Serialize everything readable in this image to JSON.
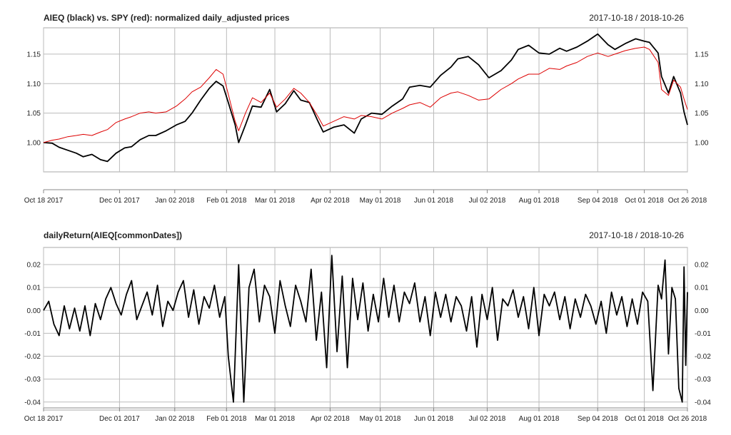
{
  "chart_data": [
    {
      "type": "line",
      "title": "AIEQ (black) vs. SPY (red): normalized daily_adjusted prices",
      "date_range": "2017-10-18 / 2018-10-26",
      "x_tick_labels": [
        "Oct 18 2017",
        "Dec 01 2017",
        "Jan 02 2018",
        "Feb 01 2018",
        "Mar 01 2018",
        "Apr 02 2018",
        "May 01 2018",
        "Jun 01 2018",
        "Jul 02 2018",
        "Aug 01 2018",
        "Sep 04 2018",
        "Oct 01 2018",
        "Oct 26 2018"
      ],
      "y_tick_labels": [
        "1.00",
        "1.05",
        "1.10",
        "1.15"
      ],
      "ylim": [
        0.96,
        1.185
      ],
      "grid": true,
      "series": [
        {
          "name": "AIEQ",
          "color": "#000000",
          "x": [
            "2017-10-18",
            "2017-10-23",
            "2017-10-27",
            "2017-11-01",
            "2017-11-06",
            "2017-11-10",
            "2017-11-15",
            "2017-11-20",
            "2017-11-24",
            "2017-11-29",
            "2017-12-04",
            "2017-12-08",
            "2017-12-13",
            "2017-12-18",
            "2017-12-22",
            "2017-12-28",
            "2018-01-03",
            "2018-01-08",
            "2018-01-12",
            "2018-01-17",
            "2018-01-22",
            "2018-01-26",
            "2018-01-30",
            "2018-02-02",
            "2018-02-06",
            "2018-02-08",
            "2018-02-12",
            "2018-02-16",
            "2018-02-21",
            "2018-02-26",
            "2018-03-02",
            "2018-03-07",
            "2018-03-12",
            "2018-03-16",
            "2018-03-21",
            "2018-03-26",
            "2018-03-29",
            "2018-04-04",
            "2018-04-10",
            "2018-04-16",
            "2018-04-20",
            "2018-04-26",
            "2018-05-02",
            "2018-05-08",
            "2018-05-14",
            "2018-05-18",
            "2018-05-24",
            "2018-05-30",
            "2018-06-05",
            "2018-06-11",
            "2018-06-15",
            "2018-06-21",
            "2018-06-27",
            "2018-07-03",
            "2018-07-10",
            "2018-07-16",
            "2018-07-20",
            "2018-07-26",
            "2018-08-01",
            "2018-08-07",
            "2018-08-13",
            "2018-08-17",
            "2018-08-23",
            "2018-08-29",
            "2018-09-04",
            "2018-09-10",
            "2018-09-14",
            "2018-09-20",
            "2018-09-26",
            "2018-10-01",
            "2018-10-04",
            "2018-10-09",
            "2018-10-11",
            "2018-10-15",
            "2018-10-18",
            "2018-10-22",
            "2018-10-24",
            "2018-10-26"
          ],
          "values": [
            1.0,
            0.999,
            0.992,
            0.987,
            0.982,
            0.976,
            0.98,
            0.971,
            0.968,
            0.982,
            0.991,
            0.993,
            1.005,
            1.012,
            1.012,
            1.02,
            1.03,
            1.036,
            1.05,
            1.072,
            1.092,
            1.104,
            1.096,
            1.068,
            1.03,
            1.0,
            1.03,
            1.062,
            1.06,
            1.09,
            1.052,
            1.066,
            1.088,
            1.072,
            1.068,
            1.036,
            1.018,
            1.026,
            1.03,
            1.016,
            1.04,
            1.05,
            1.048,
            1.062,
            1.074,
            1.094,
            1.097,
            1.094,
            1.114,
            1.128,
            1.142,
            1.146,
            1.132,
            1.11,
            1.122,
            1.14,
            1.158,
            1.165,
            1.152,
            1.15,
            1.16,
            1.155,
            1.162,
            1.172,
            1.184,
            1.166,
            1.158,
            1.168,
            1.176,
            1.172,
            1.17,
            1.152,
            1.112,
            1.084,
            1.112,
            1.084,
            1.052,
            1.03
          ]
        },
        {
          "name": "SPY",
          "color": "#dd0000",
          "x": [
            "2017-10-18",
            "2017-10-23",
            "2017-10-27",
            "2017-11-01",
            "2017-11-06",
            "2017-11-10",
            "2017-11-15",
            "2017-11-20",
            "2017-11-24",
            "2017-11-29",
            "2017-12-04",
            "2017-12-08",
            "2017-12-13",
            "2017-12-18",
            "2017-12-22",
            "2017-12-28",
            "2018-01-03",
            "2018-01-08",
            "2018-01-12",
            "2018-01-17",
            "2018-01-22",
            "2018-01-26",
            "2018-01-30",
            "2018-02-02",
            "2018-02-06",
            "2018-02-08",
            "2018-02-12",
            "2018-02-16",
            "2018-02-21",
            "2018-02-26",
            "2018-03-02",
            "2018-03-07",
            "2018-03-12",
            "2018-03-16",
            "2018-03-21",
            "2018-03-26",
            "2018-03-29",
            "2018-04-04",
            "2018-04-10",
            "2018-04-16",
            "2018-04-20",
            "2018-04-26",
            "2018-05-02",
            "2018-05-08",
            "2018-05-14",
            "2018-05-18",
            "2018-05-24",
            "2018-05-30",
            "2018-06-05",
            "2018-06-11",
            "2018-06-15",
            "2018-06-21",
            "2018-06-27",
            "2018-07-03",
            "2018-07-10",
            "2018-07-16",
            "2018-07-20",
            "2018-07-26",
            "2018-08-01",
            "2018-08-07",
            "2018-08-13",
            "2018-08-17",
            "2018-08-23",
            "2018-08-29",
            "2018-09-04",
            "2018-09-10",
            "2018-09-14",
            "2018-09-20",
            "2018-09-26",
            "2018-10-01",
            "2018-10-04",
            "2018-10-09",
            "2018-10-11",
            "2018-10-15",
            "2018-10-18",
            "2018-10-22",
            "2018-10-24",
            "2018-10-26"
          ],
          "values": [
            1.0,
            1.004,
            1.006,
            1.01,
            1.012,
            1.014,
            1.012,
            1.018,
            1.022,
            1.034,
            1.04,
            1.044,
            1.05,
            1.052,
            1.05,
            1.052,
            1.062,
            1.074,
            1.086,
            1.094,
            1.11,
            1.124,
            1.116,
            1.082,
            1.036,
            1.02,
            1.05,
            1.076,
            1.068,
            1.084,
            1.06,
            1.074,
            1.092,
            1.084,
            1.068,
            1.044,
            1.028,
            1.036,
            1.044,
            1.04,
            1.046,
            1.044,
            1.04,
            1.05,
            1.058,
            1.064,
            1.068,
            1.06,
            1.076,
            1.084,
            1.086,
            1.08,
            1.072,
            1.074,
            1.09,
            1.1,
            1.108,
            1.116,
            1.116,
            1.126,
            1.124,
            1.13,
            1.136,
            1.146,
            1.152,
            1.146,
            1.15,
            1.156,
            1.16,
            1.162,
            1.158,
            1.136,
            1.09,
            1.08,
            1.106,
            1.094,
            1.074,
            1.056
          ]
        }
      ]
    },
    {
      "type": "line",
      "title": "dailyReturn(AIEQ[commonDates])",
      "date_range": "2017-10-18 / 2018-10-26",
      "x_tick_labels": [
        "Oct 18 2017",
        "Dec 01 2017",
        "Jan 02 2018",
        "Feb 01 2018",
        "Mar 01 2018",
        "Apr 02 2018",
        "May 01 2018",
        "Jun 01 2018",
        "Jul 02 2018",
        "Aug 01 2018",
        "Sep 04 2018",
        "Oct 01 2018",
        "Oct 26 2018"
      ],
      "y_tick_labels": [
        "-0.04",
        "-0.03",
        "-0.02",
        "-0.01",
        "0.00",
        "0.01",
        "0.02"
      ],
      "ylim": [
        -0.041,
        0.025
      ],
      "grid": true,
      "series": [
        {
          "name": "dailyReturn(AIEQ)",
          "color": "#000000",
          "x": [
            "2017-10-18",
            "2017-10-21",
            "2017-10-24",
            "2017-10-27",
            "2017-10-30",
            "2017-11-02",
            "2017-11-05",
            "2017-11-08",
            "2017-11-11",
            "2017-11-14",
            "2017-11-17",
            "2017-11-20",
            "2017-11-23",
            "2017-11-26",
            "2017-11-29",
            "2017-12-02",
            "2017-12-05",
            "2017-12-08",
            "2017-12-11",
            "2017-12-14",
            "2017-12-17",
            "2017-12-20",
            "2017-12-23",
            "2017-12-26",
            "2017-12-29",
            "2018-01-01",
            "2018-01-04",
            "2018-01-07",
            "2018-01-10",
            "2018-01-13",
            "2018-01-16",
            "2018-01-19",
            "2018-01-22",
            "2018-01-25",
            "2018-01-28",
            "2018-01-31",
            "2018-02-02",
            "2018-02-05",
            "2018-02-08",
            "2018-02-11",
            "2018-02-14",
            "2018-02-17",
            "2018-02-20",
            "2018-02-23",
            "2018-02-26",
            "2018-03-01",
            "2018-03-04",
            "2018-03-07",
            "2018-03-10",
            "2018-03-13",
            "2018-03-16",
            "2018-03-19",
            "2018-03-22",
            "2018-03-25",
            "2018-03-28",
            "2018-03-31",
            "2018-04-03",
            "2018-04-06",
            "2018-04-09",
            "2018-04-12",
            "2018-04-15",
            "2018-04-18",
            "2018-04-21",
            "2018-04-24",
            "2018-04-27",
            "2018-04-30",
            "2018-05-03",
            "2018-05-06",
            "2018-05-09",
            "2018-05-12",
            "2018-05-15",
            "2018-05-18",
            "2018-05-21",
            "2018-05-24",
            "2018-05-27",
            "2018-05-30",
            "2018-06-02",
            "2018-06-05",
            "2018-06-08",
            "2018-06-11",
            "2018-06-14",
            "2018-06-17",
            "2018-06-20",
            "2018-06-23",
            "2018-06-26",
            "2018-06-29",
            "2018-07-02",
            "2018-07-05",
            "2018-07-08",
            "2018-07-11",
            "2018-07-14",
            "2018-07-17",
            "2018-07-20",
            "2018-07-23",
            "2018-07-26",
            "2018-07-29",
            "2018-08-01",
            "2018-08-04",
            "2018-08-07",
            "2018-08-10",
            "2018-08-13",
            "2018-08-16",
            "2018-08-19",
            "2018-08-22",
            "2018-08-25",
            "2018-08-28",
            "2018-08-31",
            "2018-09-03",
            "2018-09-06",
            "2018-09-09",
            "2018-09-12",
            "2018-09-15",
            "2018-09-18",
            "2018-09-21",
            "2018-09-24",
            "2018-09-27",
            "2018-09-30",
            "2018-10-03",
            "2018-10-06",
            "2018-10-09",
            "2018-10-11",
            "2018-10-13",
            "2018-10-15",
            "2018-10-17",
            "2018-10-19",
            "2018-10-21",
            "2018-10-23",
            "2018-10-24",
            "2018-10-25",
            "2018-10-26"
          ],
          "values": [
            0.0,
            0.004,
            -0.006,
            -0.011,
            0.002,
            -0.008,
            0.001,
            -0.009,
            0.002,
            -0.011,
            0.003,
            -0.004,
            0.005,
            0.01,
            0.003,
            -0.002,
            0.007,
            0.013,
            -0.004,
            0.002,
            0.008,
            -0.002,
            0.011,
            -0.007,
            0.004,
            0.0,
            0.008,
            0.013,
            -0.003,
            0.009,
            -0.006,
            0.006,
            0.001,
            0.011,
            -0.003,
            0.006,
            -0.02,
            -0.04,
            0.02,
            -0.04,
            0.01,
            0.018,
            -0.005,
            0.011,
            0.006,
            -0.01,
            0.013,
            0.002,
            -0.007,
            0.011,
            0.004,
            -0.005,
            0.018,
            -0.013,
            0.008,
            -0.025,
            0.024,
            -0.018,
            0.015,
            -0.025,
            0.014,
            -0.004,
            0.012,
            -0.009,
            0.007,
            -0.005,
            0.014,
            -0.003,
            0.011,
            -0.005,
            0.008,
            0.003,
            0.012,
            -0.005,
            0.006,
            -0.011,
            0.008,
            -0.003,
            0.007,
            -0.005,
            0.006,
            0.002,
            -0.009,
            0.006,
            -0.016,
            0.007,
            -0.004,
            0.01,
            -0.013,
            0.005,
            0.002,
            0.009,
            -0.003,
            0.006,
            -0.008,
            0.01,
            -0.011,
            0.007,
            0.002,
            0.008,
            -0.004,
            0.006,
            -0.008,
            0.005,
            -0.003,
            0.007,
            0.002,
            -0.006,
            0.004,
            -0.01,
            0.008,
            -0.002,
            0.006,
            -0.007,
            0.005,
            -0.006,
            0.008,
            0.004,
            -0.035,
            0.011,
            0.005,
            0.022,
            -0.019,
            0.01,
            0.005,
            -0.034,
            -0.04,
            0.019,
            -0.024,
            0.008
          ]
        }
      ]
    }
  ]
}
